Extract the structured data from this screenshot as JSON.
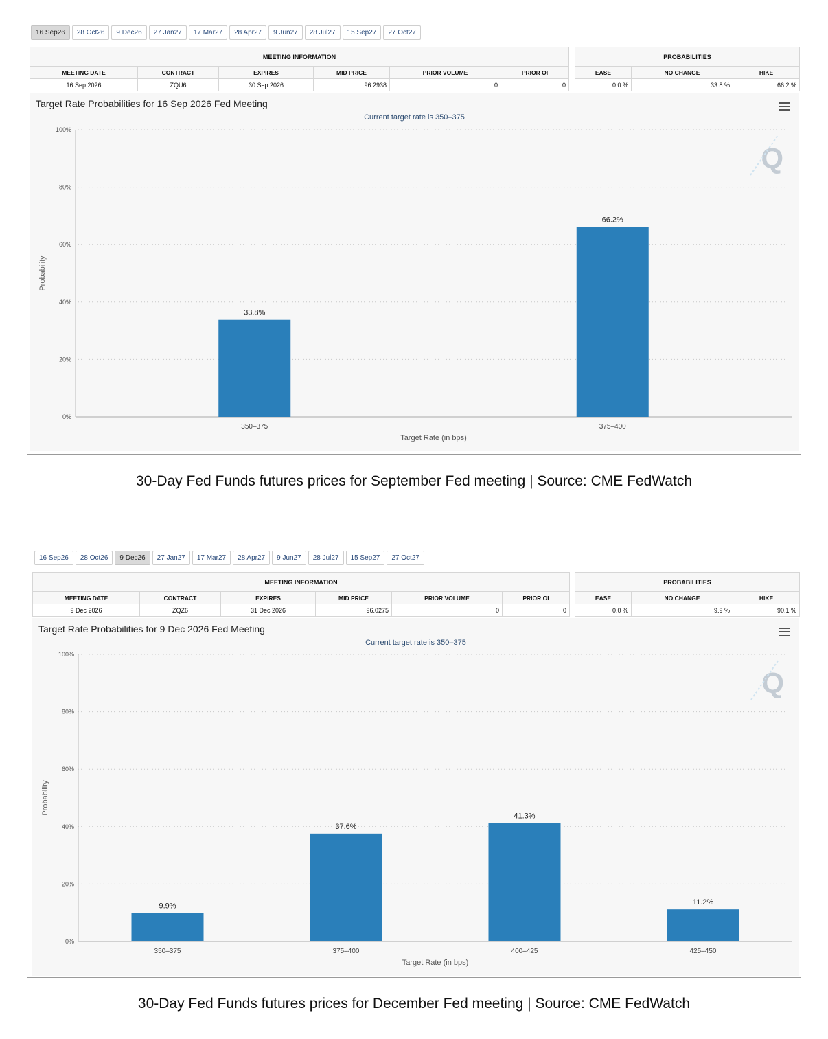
{
  "panels": [
    {
      "tabs": [
        {
          "label": "16 Sep26",
          "active": true
        },
        {
          "label": "28 Oct26",
          "active": false
        },
        {
          "label": "9 Dec26",
          "active": false
        },
        {
          "label": "27 Jan27",
          "active": false
        },
        {
          "label": "17 Mar27",
          "active": false
        },
        {
          "label": "28 Apr27",
          "active": false
        },
        {
          "label": "9 Jun27",
          "active": false
        },
        {
          "label": "28 Jul27",
          "active": false
        },
        {
          "label": "15 Sep27",
          "active": false
        },
        {
          "label": "27 Oct27",
          "active": false
        }
      ],
      "meeting_info": {
        "group_label": "MEETING INFORMATION",
        "headers": [
          "MEETING DATE",
          "CONTRACT",
          "EXPIRES",
          "MID PRICE",
          "PRIOR VOLUME",
          "PRIOR OI"
        ],
        "values": [
          "16 Sep 2026",
          "ZQU6",
          "30 Sep 2026",
          "96.2938",
          "0",
          "0"
        ]
      },
      "probabilities": {
        "group_label": "PROBABILITIES",
        "headers": [
          "EASE",
          "NO CHANGE",
          "HIKE"
        ],
        "values": [
          "0.0 %",
          "33.8 %",
          "66.2 %"
        ]
      },
      "caption": "30-Day Fed Funds futures prices for September Fed meeting | Source: CME FedWatch"
    },
    {
      "tabs": [
        {
          "label": "16 Sep26",
          "active": false
        },
        {
          "label": "28 Oct26",
          "active": false
        },
        {
          "label": "9 Dec26",
          "active": true
        },
        {
          "label": "27 Jan27",
          "active": false
        },
        {
          "label": "17 Mar27",
          "active": false
        },
        {
          "label": "28 Apr27",
          "active": false
        },
        {
          "label": "9 Jun27",
          "active": false
        },
        {
          "label": "28 Jul27",
          "active": false
        },
        {
          "label": "15 Sep27",
          "active": false
        },
        {
          "label": "27 Oct27",
          "active": false
        }
      ],
      "meeting_info": {
        "group_label": "MEETING INFORMATION",
        "headers": [
          "MEETING DATE",
          "CONTRACT",
          "EXPIRES",
          "MID PRICE",
          "PRIOR VOLUME",
          "PRIOR OI"
        ],
        "values": [
          "9 Dec 2026",
          "ZQZ6",
          "31 Dec 2026",
          "96.0275",
          "0",
          "0"
        ]
      },
      "probabilities": {
        "group_label": "PROBABILITIES",
        "headers": [
          "EASE",
          "NO CHANGE",
          "HIKE"
        ],
        "values": [
          "0.0 %",
          "9.9 %",
          "90.1 %"
        ]
      },
      "caption": "30-Day Fed Funds futures prices for December Fed meeting | Source: CME FedWatch"
    }
  ],
  "chart_data": [
    {
      "type": "bar",
      "title": "Target Rate Probabilities for 16 Sep 2026 Fed Meeting",
      "subtitle": "Current target rate is 350–375",
      "categories": [
        "350–375",
        "375–400"
      ],
      "values": [
        33.8,
        66.2
      ],
      "data_labels": [
        "33.8%",
        "66.2%"
      ],
      "xlabel": "Target Rate (in bps)",
      "ylabel": "Probability",
      "ylim": [
        0,
        100
      ],
      "yticks": [
        "0%",
        "20%",
        "40%",
        "60%",
        "80%",
        "100%"
      ],
      "grid": true,
      "bar_color": "#2a7fba",
      "watermark": "Q"
    },
    {
      "type": "bar",
      "title": "Target Rate Probabilities for 9 Dec 2026 Fed Meeting",
      "subtitle": "Current target rate is 350–375",
      "categories": [
        "350–375",
        "375–400",
        "400–425",
        "425–450"
      ],
      "values": [
        9.9,
        37.6,
        41.3,
        11.2
      ],
      "data_labels": [
        "9.9%",
        "37.6%",
        "41.3%",
        "11.2%"
      ],
      "xlabel": "Target Rate (in bps)",
      "ylabel": "Probability",
      "ylim": [
        0,
        100
      ],
      "yticks": [
        "0%",
        "20%",
        "40%",
        "60%",
        "80%",
        "100%"
      ],
      "grid": true,
      "bar_color": "#2a7fba",
      "watermark": "Q"
    }
  ]
}
